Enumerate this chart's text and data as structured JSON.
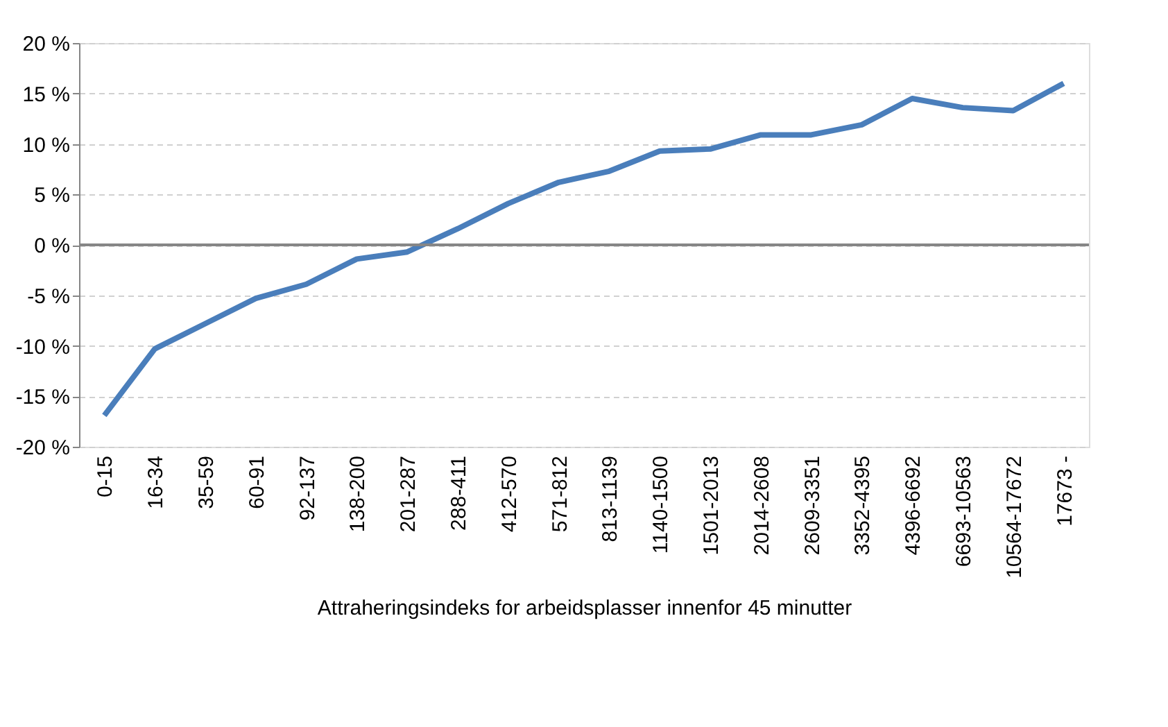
{
  "chart_data": {
    "type": "line",
    "xlabel": "Attraheringsindeks for arbeidsplasser innenfor 45 minutter",
    "categories": [
      "0-15",
      "16-34",
      "35-59",
      "60-91",
      "92-137",
      "138-200",
      "201-287",
      "288-411",
      "412-570",
      "571-812",
      "813-1139",
      "1140-1500",
      "1501-2013",
      "2014-2608",
      "2609-3351",
      "3352-4395",
      "4396-6692",
      "6693-10563",
      "10564-17672",
      "17673 -"
    ],
    "series": [
      {
        "color": "#4a7ebb",
        "values": [
          -16.9,
          -10.3,
          -7.8,
          -5.3,
          -3.9,
          -1.4,
          -0.7,
          1.6,
          4.1,
          6.2,
          7.3,
          9.3,
          9.5,
          10.9,
          10.9,
          11.9,
          14.5,
          13.6,
          13.3,
          16.0
        ]
      }
    ],
    "ylim": [
      -20,
      20
    ],
    "yticks": [
      {
        "value": -20,
        "label": "-20 %"
      },
      {
        "value": -15,
        "label": "-15 %"
      },
      {
        "value": -10,
        "label": "-10 %"
      },
      {
        "value": -5,
        "label": "-5 %"
      },
      {
        "value": 0,
        "label": "0 %"
      },
      {
        "value": 5,
        "label": "5 %"
      },
      {
        "value": 10,
        "label": "10 %"
      },
      {
        "value": 15,
        "label": "15 %"
      },
      {
        "value": 20,
        "label": "20 %"
      }
    ],
    "grid": "y",
    "legend": false,
    "marker": "none",
    "line_style": "solid"
  }
}
